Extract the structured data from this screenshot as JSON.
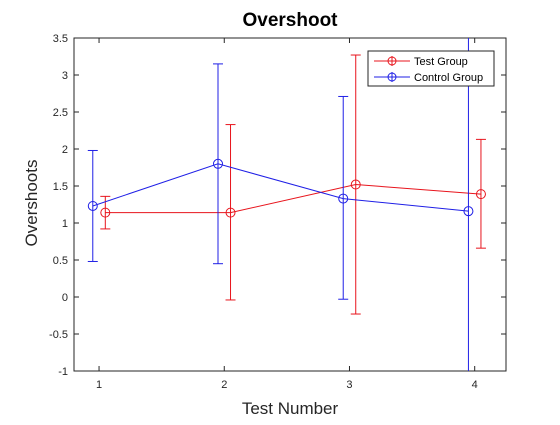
{
  "chart_data": {
    "type": "line",
    "title": "Overshoot",
    "xlabel": "Test Number",
    "ylabel": "Overshoots",
    "xlim": [
      0.8,
      4.25
    ],
    "ylim": [
      -1,
      3.5
    ],
    "xticks": [
      1,
      2,
      3,
      4
    ],
    "yticks": [
      -1,
      -0.5,
      0,
      0.5,
      1,
      1.5,
      2,
      2.5,
      3,
      3.5
    ],
    "xtick_labels": [
      "1",
      "2",
      "3",
      "4"
    ],
    "ytick_labels": [
      "-1",
      "-0.5",
      "0",
      "0.5",
      "1",
      "1.5",
      "2",
      "2.5",
      "3",
      "3.5"
    ],
    "grid": false,
    "legend_position": "top-right",
    "series": [
      {
        "name": "Test Group",
        "color": "#e8141c",
        "marker": "circle",
        "x": [
          1.05,
          2.05,
          3.05,
          4.05
        ],
        "y": [
          1.14,
          1.14,
          1.52,
          1.39
        ],
        "err_low": [
          0.92,
          -0.04,
          -0.23,
          0.66
        ],
        "err_high": [
          1.36,
          2.33,
          3.27,
          2.13
        ]
      },
      {
        "name": "Control Group",
        "color": "#1f1fe6",
        "marker": "circle",
        "x": [
          0.95,
          1.95,
          2.95,
          3.95
        ],
        "y": [
          1.23,
          1.8,
          1.33,
          1.16
        ],
        "err_low": [
          0.48,
          0.45,
          -0.03,
          -1.0
        ],
        "err_high": [
          1.98,
          3.15,
          2.71,
          3.5
        ]
      }
    ]
  }
}
